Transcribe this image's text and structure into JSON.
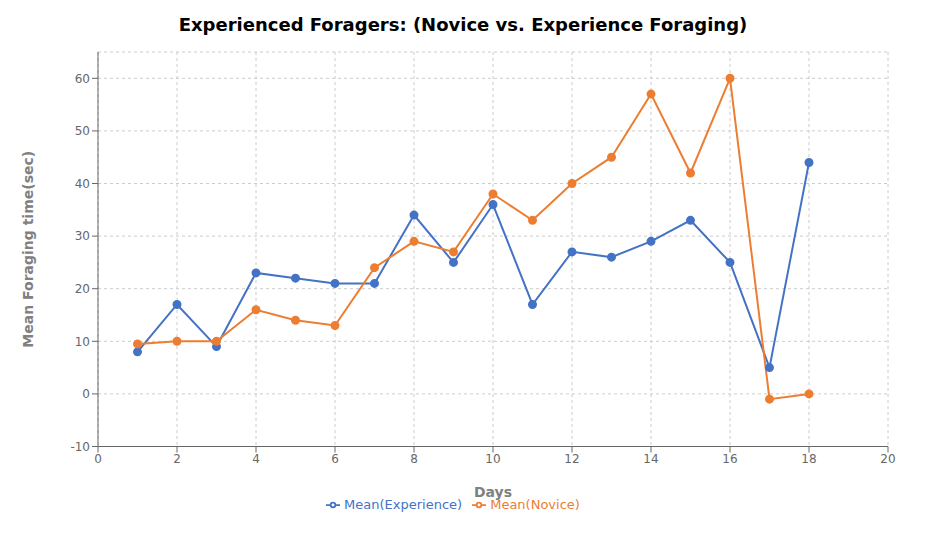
{
  "chart_data": {
    "type": "line",
    "title": "Experienced Foragers: (Novice vs. Experience Foraging)",
    "xlabel": "Days",
    "ylabel": "Mean Foraging time(sec)",
    "x": [
      1,
      2,
      3,
      4,
      5,
      6,
      7,
      8,
      9,
      10,
      11,
      12,
      13,
      14,
      15,
      16,
      17,
      18
    ],
    "series": [
      {
        "name": "Mean(Experience)",
        "color": "#4472C4",
        "marker": "circle",
        "values": [
          8,
          17,
          9,
          23,
          22,
          21,
          21,
          34,
          25,
          36,
          17,
          27,
          26,
          29,
          33,
          25,
          5,
          44
        ]
      },
      {
        "name": "Mean(Novice)",
        "color": "#ED7D31",
        "marker": "circle",
        "values": [
          9.5,
          10,
          10,
          16,
          14,
          13,
          24,
          29,
          27,
          38,
          33,
          40,
          45,
          57,
          42,
          60,
          -1,
          0
        ]
      }
    ],
    "xlim": [
      0,
      20
    ],
    "ylim": [
      -10,
      65
    ],
    "xticks": [
      0,
      2,
      4,
      6,
      8,
      10,
      12,
      14,
      16,
      18,
      20
    ],
    "yticks": [
      -10,
      0,
      10,
      20,
      30,
      40,
      50,
      60
    ],
    "grid": true,
    "legend": "bottom"
  }
}
